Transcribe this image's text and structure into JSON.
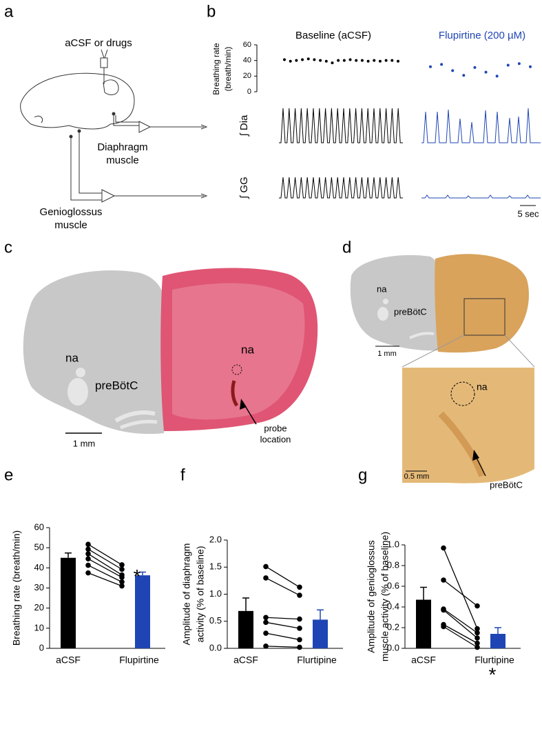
{
  "panel_labels": [
    "a",
    "b",
    "c",
    "d",
    "e",
    "f",
    "g"
  ],
  "panel_a": {
    "infusion": "aCSF or drugs",
    "diaphragm": [
      "Diaphragm",
      "muscle"
    ],
    "genioglossus": [
      "Genioglossus",
      "muscle"
    ]
  },
  "panel_b": {
    "trace_labels": [
      "∫ Dia",
      "∫ GG"
    ],
    "scale": "5 sec"
  },
  "panel_c": {
    "labels": [
      "na",
      "preBötC"
    ],
    "section_label": "na",
    "scale": "1 mm",
    "probe": [
      "probe",
      "location"
    ]
  },
  "panel_d": {
    "labels": [
      "na",
      "preBötC"
    ],
    "scale": "1 mm",
    "inset_labels": [
      "na",
      "preBötC"
    ],
    "inset_scale": "0.5 mm"
  },
  "chart_data": [
    {
      "type": "dot",
      "ylabel": [
        "Breathing rate",
        "(breath/min)"
      ],
      "ylim": [
        0,
        60
      ],
      "yticks": [
        0,
        20,
        40,
        60
      ],
      "series": [
        {
          "name": "Baseline (aCSF)",
          "color": "#000000",
          "values": [
            41,
            39,
            40,
            41,
            42,
            41,
            40,
            39,
            37,
            40,
            40,
            41,
            40,
            40,
            39,
            40,
            39,
            40,
            40,
            39
          ]
        },
        {
          "name": "Flupirtine (200 µM)",
          "color": "#1f45b5",
          "values": [
            32,
            35,
            27,
            21,
            31,
            25,
            20,
            34,
            36,
            32
          ]
        }
      ]
    },
    {
      "type": "bar",
      "ylabel": [
        "Breathing rate (breath/min)"
      ],
      "ylim": [
        0,
        60
      ],
      "yticks": [
        0,
        10,
        20,
        30,
        40,
        50,
        60
      ],
      "categories": [
        "aCSF",
        "Flupirtine"
      ],
      "values": [
        45,
        36.3
      ],
      "errors": [
        2.4,
        1.6
      ],
      "colors": [
        "#000000",
        "#1f45b5"
      ],
      "subjects": [
        [
          51.7,
          41.5
        ],
        [
          49.3,
          39.3
        ],
        [
          47,
          36.5
        ],
        [
          44.5,
          35.3
        ],
        [
          41.3,
          33
        ],
        [
          37.5,
          31
        ]
      ],
      "annotation": "*"
    },
    {
      "type": "bar",
      "ylabel": [
        "Amplitude of diaphragm",
        "activity (% of baseline)"
      ],
      "ylim": [
        0,
        2
      ],
      "yticks": [
        {
          "value": 0,
          "label": "0.0"
        },
        0.5,
        {
          "value": 1,
          "label": "1.0"
        },
        1.5,
        {
          "value": 2,
          "label": "2.0"
        }
      ],
      "categories": [
        "aCSF",
        "Flurtipine"
      ],
      "values": [
        0.69,
        0.53
      ],
      "errors": [
        0.24,
        0.18
      ],
      "colors": [
        "#000000",
        "#1f45b5"
      ],
      "subjects": [
        [
          1.51,
          1.13
        ],
        [
          1.3,
          0.98
        ],
        [
          0.57,
          0.54
        ],
        [
          0.48,
          0.37
        ],
        [
          0.28,
          0.16
        ],
        [
          0.04,
          0.02
        ]
      ]
    },
    {
      "type": "bar",
      "ylabel": [
        "Amplitude of genioglossus",
        "muscle activity (% of baseline)"
      ],
      "ylim": [
        0,
        1
      ],
      "yticks": [
        {
          "value": 0,
          "label": "0.0"
        },
        0.2,
        0.4,
        0.6,
        0.8,
        {
          "value": 1,
          "label": "1.0"
        }
      ],
      "categories": [
        "aCSF",
        "Flurtipine"
      ],
      "values": [
        0.47,
        0.14
      ],
      "errors": [
        0.12,
        0.06
      ],
      "colors": [
        "#000000",
        "#1f45b5"
      ],
      "subjects": [
        [
          0.97,
          0.19
        ],
        [
          0.66,
          0.41
        ],
        [
          0.38,
          0.15
        ],
        [
          0.37,
          0.1
        ],
        [
          0.23,
          0.05
        ],
        [
          0.21,
          0.01
        ]
      ],
      "annotation": "*"
    }
  ]
}
